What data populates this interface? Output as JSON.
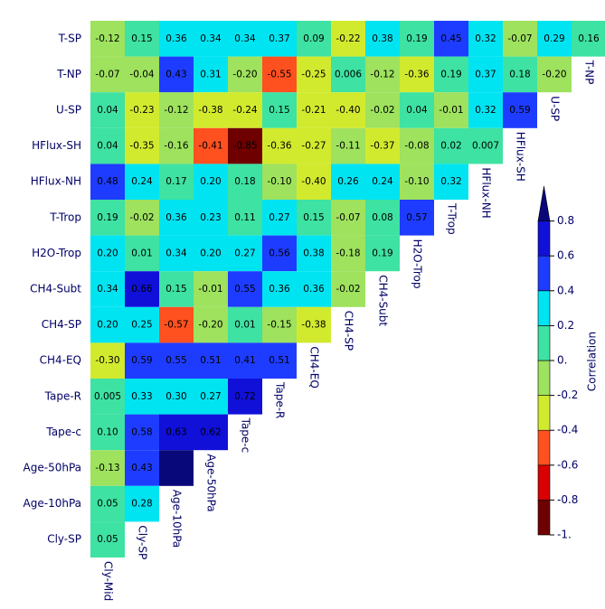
{
  "chart_data": {
    "type": "heatmap",
    "y_labels": [
      "T-SP",
      "T-NP",
      "U-SP",
      "HFlux-SH",
      "HFlux-NH",
      "T-Trop",
      "H2O-Trop",
      "CH4-Subt",
      "CH4-SP",
      "CH4-EQ",
      "Tape-R",
      "Tape-c",
      "Age-50hPa",
      "Age-10hPa",
      "Cly-SP"
    ],
    "x_labels": [
      "Cly-Mid",
      "Cly-SP",
      "Age-10hPa",
      "Age-50hPa",
      "Tape-c",
      "Tape-R",
      "CH4-EQ",
      "CH4-SP",
      "CH4-Subt",
      "H2O-Trop",
      "T-Trop",
      "HFlux-NH",
      "HFlux-SH",
      "U-SP",
      "T-NP"
    ],
    "values": [
      [
        -0.12,
        0.15,
        0.36,
        0.34,
        0.34,
        0.37,
        0.09,
        -0.22,
        0.38,
        0.19,
        0.45,
        0.32,
        -0.07,
        0.29,
        0.16
      ],
      [
        -0.07,
        -0.04,
        0.43,
        0.31,
        -0.2,
        -0.55,
        -0.25,
        0.006,
        -0.12,
        -0.36,
        0.19,
        0.37,
        0.18,
        -0.2
      ],
      [
        0.04,
        -0.23,
        -0.12,
        -0.38,
        -0.24,
        0.15,
        -0.21,
        -0.4,
        -0.02,
        0.04,
        -0.01,
        0.32,
        0.59
      ],
      [
        0.04,
        -0.35,
        -0.16,
        -0.41,
        -0.85,
        -0.36,
        -0.27,
        -0.11,
        -0.37,
        -0.08,
        0.02,
        0.007
      ],
      [
        0.48,
        0.24,
        0.17,
        0.2,
        0.18,
        -0.1,
        -0.4,
        0.26,
        0.24,
        -0.1,
        0.32
      ],
      [
        0.19,
        -0.02,
        0.36,
        0.23,
        0.11,
        0.27,
        0.15,
        -0.07,
        0.08,
        0.57
      ],
      [
        0.2,
        0.01,
        0.34,
        0.2,
        0.27,
        0.56,
        0.38,
        -0.18,
        0.19
      ],
      [
        0.34,
        0.66,
        0.15,
        -0.01,
        0.55,
        0.36,
        0.36,
        -0.02
      ],
      [
        0.2,
        0.25,
        -0.57,
        -0.2,
        0.01,
        -0.15,
        -0.38
      ],
      [
        -0.3,
        0.59,
        0.55,
        0.51,
        0.41,
        0.51
      ],
      [
        0.005,
        0.33,
        0.3,
        0.27,
        0.72
      ],
      [
        0.1,
        0.58,
        0.63,
        0.62
      ],
      [
        -0.13,
        0.43,
        0.93
      ],
      [
        0.05,
        0.28
      ],
      [
        0.05
      ]
    ],
    "value_labels": [
      [
        "-0.12",
        "0.15",
        "0.36",
        "0.34",
        "0.34",
        "0.37",
        "0.09",
        "-0.22",
        "0.38",
        "0.19",
        "0.45",
        "0.32",
        "-0.07",
        "0.29",
        "0.16"
      ],
      [
        "-0.07",
        "-0.04",
        "0.43",
        "0.31",
        "-0.20",
        "-0.55",
        "-0.25",
        "0.006",
        "-0.12",
        "-0.36",
        "0.19",
        "0.37",
        "0.18",
        "-0.20"
      ],
      [
        "0.04",
        "-0.23",
        "-0.12",
        "-0.38",
        "-0.24",
        "0.15",
        "-0.21",
        "-0.40",
        "-0.02",
        "0.04",
        "-0.01",
        "0.32",
        "0.59"
      ],
      [
        "0.04",
        "-0.35",
        "-0.16",
        "-0.41",
        "-0.85",
        "-0.36",
        "-0.27",
        "-0.11",
        "-0.37",
        "-0.08",
        "0.02",
        "0.007"
      ],
      [
        "0.48",
        "0.24",
        "0.17",
        "0.20",
        "0.18",
        "-0.10",
        "-0.40",
        "0.26",
        "0.24",
        "-0.10",
        "0.32"
      ],
      [
        "0.19",
        "-0.02",
        "0.36",
        "0.23",
        "0.11",
        "0.27",
        "0.15",
        "-0.07",
        "0.08",
        "0.57"
      ],
      [
        "0.20",
        "0.01",
        "0.34",
        "0.20",
        "0.27",
        "0.56",
        "0.38",
        "-0.18",
        "0.19"
      ],
      [
        "0.34",
        "0.66",
        "0.15",
        "-0.01",
        "0.55",
        "0.36",
        "0.36",
        "-0.02"
      ],
      [
        "0.20",
        "0.25",
        "-0.57",
        "-0.20",
        "0.01",
        "-0.15",
        "-0.38"
      ],
      [
        "-0.30",
        "0.59",
        "0.55",
        "0.51",
        "0.41",
        "0.51"
      ],
      [
        "0.005",
        "0.33",
        "0.30",
        "0.27",
        "0.72"
      ],
      [
        "0.10",
        "0.58",
        "0.63",
        "0.62"
      ],
      [
        "-0.13",
        "0.43",
        null
      ],
      [
        "0.05",
        "0.28"
      ],
      [
        "0.05"
      ]
    ],
    "colorbar": {
      "label": "Correlation",
      "ylim": [
        -1,
        1
      ],
      "yticks": [
        0.8,
        0.6,
        0.4,
        0.2,
        {
          "value": 0,
          "label": "0."
        },
        -0.2,
        -0.4,
        -0.6,
        -0.8,
        {
          "value": -1,
          "label": "-1."
        }
      ],
      "colors": [
        "#6e0000",
        "#d80000",
        "#ff5020",
        "#d2ea2e",
        "#9ee25e",
        "#3ee2a2",
        "#00e4f2",
        "#1e3cff",
        "#1010d8",
        "#08087a"
      ]
    }
  }
}
